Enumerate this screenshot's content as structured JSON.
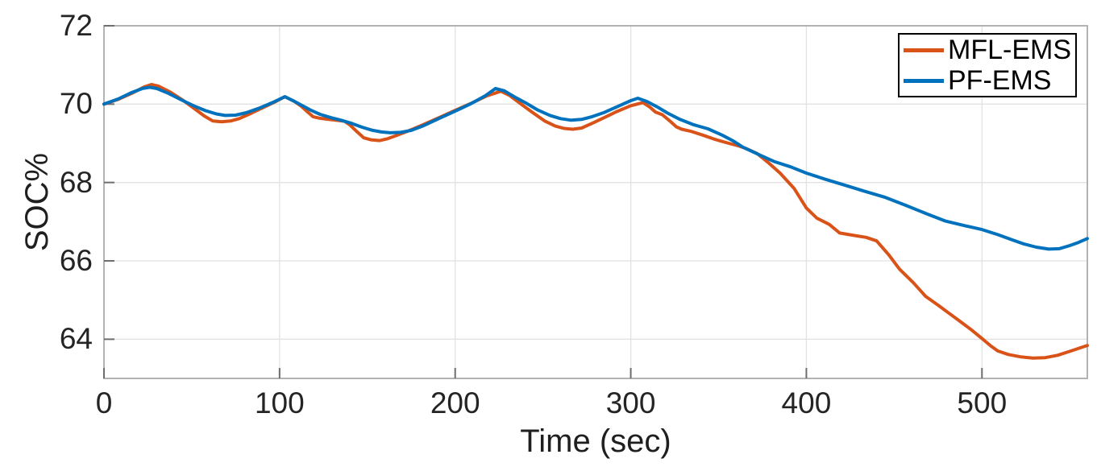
{
  "chart_data": {
    "type": "line",
    "title": "",
    "xlabel": "Time (sec)",
    "ylabel": "SOC%",
    "xlim": [
      0,
      560
    ],
    "ylim": [
      63,
      72
    ],
    "x_ticks": [
      0,
      100,
      200,
      300,
      400,
      500
    ],
    "y_ticks": [
      64,
      66,
      68,
      70,
      72
    ],
    "grid": true,
    "legend_position": "top-right",
    "colors": {
      "grid": "#e2e2e2",
      "axis_box": "#ababab",
      "tick_mark": "#6e6e6e",
      "tick_label": "#242424",
      "legend_border": "#000000"
    },
    "series": [
      {
        "name": "MFL-EMS",
        "color": "#D95319",
        "points": [
          [
            0,
            70.0
          ],
          [
            8,
            70.12
          ],
          [
            16,
            70.28
          ],
          [
            23,
            70.44
          ],
          [
            27,
            70.5
          ],
          [
            31,
            70.46
          ],
          [
            38,
            70.3
          ],
          [
            45,
            70.1
          ],
          [
            52,
            69.87
          ],
          [
            57,
            69.7
          ],
          [
            62,
            69.57
          ],
          [
            67,
            69.55
          ],
          [
            72,
            69.57
          ],
          [
            77,
            69.63
          ],
          [
            84,
            69.77
          ],
          [
            91,
            69.92
          ],
          [
            98,
            70.07
          ],
          [
            103,
            70.19
          ],
          [
            108,
            70.08
          ],
          [
            112,
            69.96
          ],
          [
            116,
            69.8
          ],
          [
            119,
            69.68
          ],
          [
            123,
            69.64
          ],
          [
            128,
            69.61
          ],
          [
            134,
            69.58
          ],
          [
            137,
            69.56
          ],
          [
            140,
            69.47
          ],
          [
            144,
            69.3
          ],
          [
            148,
            69.14
          ],
          [
            152,
            69.09
          ],
          [
            157,
            69.07
          ],
          [
            161,
            69.11
          ],
          [
            166,
            69.19
          ],
          [
            173,
            69.31
          ],
          [
            181,
            69.46
          ],
          [
            191,
            69.66
          ],
          [
            200,
            69.84
          ],
          [
            210,
            70.04
          ],
          [
            218,
            70.21
          ],
          [
            226,
            70.33
          ],
          [
            231,
            70.22
          ],
          [
            237,
            70.02
          ],
          [
            244,
            69.79
          ],
          [
            251,
            69.57
          ],
          [
            257,
            69.44
          ],
          [
            262,
            69.38
          ],
          [
            267,
            69.36
          ],
          [
            272,
            69.39
          ],
          [
            278,
            69.51
          ],
          [
            285,
            69.66
          ],
          [
            292,
            69.81
          ],
          [
            300,
            69.96
          ],
          [
            307,
            70.04
          ],
          [
            311,
            69.92
          ],
          [
            314,
            69.8
          ],
          [
            318,
            69.73
          ],
          [
            322,
            69.58
          ],
          [
            326,
            69.42
          ],
          [
            329,
            69.36
          ],
          [
            334,
            69.31
          ],
          [
            341,
            69.21
          ],
          [
            348,
            69.1
          ],
          [
            355,
            69.01
          ],
          [
            361,
            68.94
          ],
          [
            366,
            68.86
          ],
          [
            372,
            68.74
          ],
          [
            378,
            68.52
          ],
          [
            385,
            68.24
          ],
          [
            393,
            67.85
          ],
          [
            400,
            67.35
          ],
          [
            406,
            67.09
          ],
          [
            413,
            66.93
          ],
          [
            419,
            66.71
          ],
          [
            427,
            66.65
          ],
          [
            434,
            66.6
          ],
          [
            440,
            66.51
          ],
          [
            447,
            66.15
          ],
          [
            453,
            65.79
          ],
          [
            461,
            65.44
          ],
          [
            468,
            65.09
          ],
          [
            475,
            64.87
          ],
          [
            481,
            64.67
          ],
          [
            488,
            64.44
          ],
          [
            494,
            64.24
          ],
          [
            500,
            64.02
          ],
          [
            505,
            63.83
          ],
          [
            509,
            63.7
          ],
          [
            515,
            63.61
          ],
          [
            522,
            63.55
          ],
          [
            529,
            63.52
          ],
          [
            536,
            63.53
          ],
          [
            543,
            63.59
          ],
          [
            550,
            63.69
          ],
          [
            556,
            63.78
          ],
          [
            560,
            63.84
          ]
        ]
      },
      {
        "name": "PF-EMS",
        "color": "#0072BD",
        "points": [
          [
            0,
            70.0
          ],
          [
            8,
            70.13
          ],
          [
            16,
            70.3
          ],
          [
            22,
            70.4
          ],
          [
            26,
            70.43
          ],
          [
            30,
            70.4
          ],
          [
            37,
            70.27
          ],
          [
            44,
            70.11
          ],
          [
            51,
            69.96
          ],
          [
            58,
            69.83
          ],
          [
            64,
            69.75
          ],
          [
            69,
            69.71
          ],
          [
            75,
            69.72
          ],
          [
            81,
            69.78
          ],
          [
            88,
            69.89
          ],
          [
            96,
            70.04
          ],
          [
            103,
            70.19
          ],
          [
            108,
            70.08
          ],
          [
            113,
            69.96
          ],
          [
            118,
            69.84
          ],
          [
            123,
            69.74
          ],
          [
            129,
            69.66
          ],
          [
            135,
            69.59
          ],
          [
            141,
            69.51
          ],
          [
            147,
            69.41
          ],
          [
            153,
            69.33
          ],
          [
            158,
            69.29
          ],
          [
            163,
            69.27
          ],
          [
            169,
            69.28
          ],
          [
            175,
            69.33
          ],
          [
            182,
            69.45
          ],
          [
            191,
            69.64
          ],
          [
            200,
            69.82
          ],
          [
            209,
            70.01
          ],
          [
            217,
            70.21
          ],
          [
            223,
            70.4
          ],
          [
            228,
            70.34
          ],
          [
            234,
            70.18
          ],
          [
            241,
            70.01
          ],
          [
            247,
            69.85
          ],
          [
            254,
            69.71
          ],
          [
            260,
            69.63
          ],
          [
            266,
            69.59
          ],
          [
            272,
            69.61
          ],
          [
            278,
            69.68
          ],
          [
            285,
            69.79
          ],
          [
            293,
            69.95
          ],
          [
            300,
            70.09
          ],
          [
            304,
            70.15
          ],
          [
            309,
            70.07
          ],
          [
            315,
            69.93
          ],
          [
            321,
            69.77
          ],
          [
            328,
            69.61
          ],
          [
            336,
            69.47
          ],
          [
            344,
            69.37
          ],
          [
            352,
            69.21
          ],
          [
            358,
            69.07
          ],
          [
            364,
            68.9
          ],
          [
            373,
            68.71
          ],
          [
            382,
            68.53
          ],
          [
            391,
            68.4
          ],
          [
            400,
            68.24
          ],
          [
            411,
            68.08
          ],
          [
            422,
            67.93
          ],
          [
            433,
            67.78
          ],
          [
            445,
            67.62
          ],
          [
            457,
            67.41
          ],
          [
            468,
            67.21
          ],
          [
            479,
            67.02
          ],
          [
            490,
            66.9
          ],
          [
            500,
            66.8
          ],
          [
            509,
            66.67
          ],
          [
            517,
            66.54
          ],
          [
            524,
            66.43
          ],
          [
            531,
            66.35
          ],
          [
            538,
            66.3
          ],
          [
            544,
            66.31
          ],
          [
            550,
            66.39
          ],
          [
            555,
            66.47
          ],
          [
            560,
            66.57
          ]
        ]
      }
    ]
  }
}
